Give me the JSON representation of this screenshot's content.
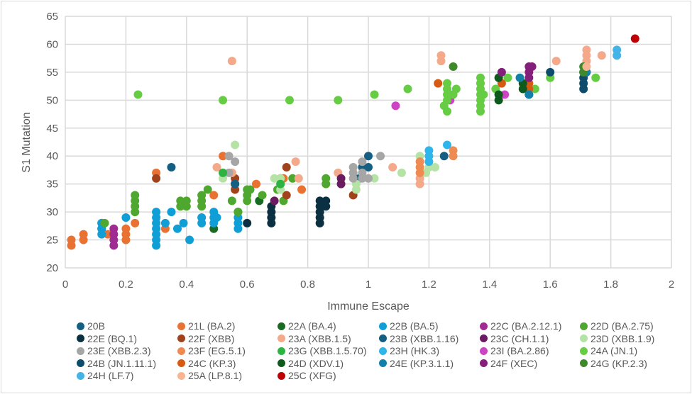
{
  "chart_data": {
    "type": "scatter",
    "title": "",
    "xlabel": "Immune Escape",
    "ylabel": "S1 Mutation",
    "xlim": [
      0,
      2
    ],
    "ylim": [
      20,
      65
    ],
    "xticks": [
      "0",
      "0.2",
      "0.4",
      "0.6",
      "0.8",
      "1",
      "1.2",
      "1.4",
      "1.6",
      "1.8",
      "2"
    ],
    "yticks": [
      "20",
      "25",
      "30",
      "35",
      "40",
      "45",
      "50",
      "55",
      "60",
      "65"
    ],
    "grid": true,
    "legend_position": "bottom",
    "series": [
      {
        "name": "20B",
        "color": "#156082",
        "points": [
          [
            0.12,
            28
          ],
          [
            0.12,
            27
          ],
          [
            0.35,
            38
          ],
          [
            0.56,
            35
          ],
          [
            0.98,
            38
          ]
        ]
      },
      {
        "name": "21L (BA.2)",
        "color": "#E97132",
        "points": [
          [
            0.02,
            24
          ],
          [
            0.02,
            25
          ],
          [
            0.06,
            25
          ],
          [
            0.06,
            26
          ],
          [
            0.14,
            26
          ],
          [
            0.2,
            25
          ],
          [
            0.2,
            26
          ],
          [
            0.2,
            27
          ],
          [
            0.23,
            28
          ],
          [
            0.33,
            27
          ],
          [
            0.3,
            37
          ],
          [
            0.49,
            33
          ],
          [
            0.52,
            40
          ],
          [
            0.63,
            35
          ],
          [
            0.72,
            36
          ],
          [
            0.78,
            34
          ]
        ]
      },
      {
        "name": "22A (BA.4)",
        "color": "#196B24",
        "points": [
          [
            0.49,
            27
          ],
          [
            0.64,
            32
          ]
        ]
      },
      {
        "name": "22B (BA.5)",
        "color": "#0F9ED5",
        "points": [
          [
            0.12,
            26
          ],
          [
            0.12,
            27
          ],
          [
            0.12,
            28
          ],
          [
            0.2,
            29
          ],
          [
            0.3,
            24
          ],
          [
            0.3,
            25
          ],
          [
            0.3,
            26
          ],
          [
            0.3,
            27
          ],
          [
            0.3,
            28
          ],
          [
            0.3,
            29
          ],
          [
            0.3,
            30
          ],
          [
            0.33,
            28
          ],
          [
            0.35,
            30
          ],
          [
            0.37,
            27
          ],
          [
            0.39,
            28
          ],
          [
            0.41,
            25
          ],
          [
            0.45,
            28
          ],
          [
            0.45,
            29
          ],
          [
            0.49,
            28
          ],
          [
            0.49,
            29
          ],
          [
            0.49,
            30
          ],
          [
            0.5,
            29
          ],
          [
            0.57,
            27
          ],
          [
            0.57,
            28
          ],
          [
            0.57,
            29
          ],
          [
            0.57,
            30
          ]
        ]
      },
      {
        "name": "22C (BA.2.12.1)",
        "color": "#A02B93",
        "points": [
          [
            0.16,
            24
          ],
          [
            0.16,
            25
          ],
          [
            0.16,
            26
          ],
          [
            0.16,
            27
          ]
        ]
      },
      {
        "name": "22D (BA.2.75)",
        "color": "#4EA72E",
        "points": [
          [
            0.13,
            28
          ],
          [
            0.23,
            30
          ],
          [
            0.23,
            31
          ],
          [
            0.23,
            32
          ],
          [
            0.23,
            33
          ],
          [
            0.38,
            31
          ],
          [
            0.38,
            32
          ],
          [
            0.4,
            31
          ],
          [
            0.4,
            32
          ],
          [
            0.45,
            31
          ],
          [
            0.45,
            32
          ],
          [
            0.45,
            33
          ],
          [
            0.47,
            34
          ],
          [
            0.55,
            32
          ],
          [
            0.57,
            30
          ],
          [
            0.6,
            32
          ],
          [
            0.6,
            33
          ],
          [
            0.6,
            34
          ],
          [
            0.61,
            34
          ],
          [
            0.65,
            33
          ],
          [
            0.7,
            34
          ],
          [
            0.71,
            36
          ],
          [
            0.72,
            32
          ],
          [
            0.75,
            36
          ],
          [
            0.86,
            35
          ],
          [
            0.86,
            36
          ]
        ]
      },
      {
        "name": "22E (BQ.1)",
        "color": "#0B3041",
        "points": [
          [
            0.6,
            28
          ],
          [
            0.68,
            28
          ],
          [
            0.68,
            29
          ],
          [
            0.68,
            30
          ],
          [
            0.68,
            31
          ],
          [
            0.84,
            28
          ],
          [
            0.84,
            29
          ],
          [
            0.84,
            30
          ],
          [
            0.84,
            31
          ],
          [
            0.84,
            32
          ],
          [
            0.86,
            31
          ],
          [
            0.86,
            32
          ]
        ]
      },
      {
        "name": "22F (XBB)",
        "color": "#A0421B",
        "points": [
          [
            0.3,
            36
          ],
          [
            0.56,
            34
          ],
          [
            0.56,
            36
          ],
          [
            0.73,
            33
          ],
          [
            0.73,
            38
          ],
          [
            0.95,
            33
          ]
        ]
      },
      {
        "name": "23A (XBB.1.5)",
        "color": "#F4A98A",
        "points": [
          [
            0.55,
            57
          ],
          [
            0.5,
            38
          ],
          [
            0.55,
            37
          ],
          [
            0.76,
            39
          ],
          [
            0.77,
            36
          ],
          [
            0.9,
            37
          ],
          [
            1.08,
            38
          ],
          [
            1.17,
            35
          ],
          [
            1.17,
            36
          ],
          [
            1.24,
            57
          ],
          [
            1.24,
            58
          ],
          [
            1.62,
            57
          ],
          [
            1.72,
            57
          ],
          [
            1.72,
            58
          ],
          [
            1.72,
            59
          ],
          [
            1.77,
            58
          ]
        ]
      },
      {
        "name": "23B (XBB.1.16)",
        "color": "#145F82",
        "points": [
          [
            0.56,
            35
          ],
          [
            0.97,
            36
          ],
          [
            1.0,
            40
          ],
          [
            1.0,
            38
          ],
          [
            1.25,
            40
          ],
          [
            1.53,
            51
          ]
        ]
      },
      {
        "name": "23C (CH.1.1)",
        "color": "#6B1B60",
        "points": [
          [
            0.69,
            32
          ],
          [
            0.91,
            35
          ],
          [
            0.91,
            36
          ]
        ]
      },
      {
        "name": "23D (XBB.1.9)",
        "color": "#B5E3A5",
        "points": [
          [
            0.52,
            36
          ],
          [
            0.52,
            37
          ],
          [
            0.56,
            42
          ],
          [
            0.69,
            36
          ],
          [
            0.71,
            34
          ],
          [
            0.71,
            35
          ],
          [
            0.71,
            36
          ],
          [
            0.96,
            34
          ],
          [
            0.96,
            35
          ],
          [
            1.02,
            36
          ],
          [
            1.11,
            37
          ],
          [
            1.17,
            40
          ],
          [
            1.19,
            37
          ],
          [
            1.2,
            38
          ],
          [
            1.22,
            38
          ]
        ]
      },
      {
        "name": "23E (XBB.2.3)",
        "color": "#A6A6A6",
        "points": [
          [
            0.54,
            40
          ],
          [
            0.56,
            39
          ],
          [
            0.54,
            37
          ],
          [
            0.95,
            36
          ],
          [
            0.95,
            37
          ],
          [
            0.95,
            38
          ],
          [
            0.98,
            36
          ],
          [
            0.98,
            37
          ],
          [
            0.98,
            39
          ],
          [
            1.0,
            36
          ],
          [
            1.04,
            40
          ]
        ]
      },
      {
        "name": "23F (EG.5.1)",
        "color": "#EE8A52",
        "points": [
          [
            1.17,
            37
          ],
          [
            1.17,
            38
          ],
          [
            1.17,
            39
          ],
          [
            1.28,
            40
          ],
          [
            1.28,
            41
          ]
        ]
      },
      {
        "name": "23G (XBB.1.5.70)",
        "color": "#2DB341",
        "points": [
          [
            0.52,
            37
          ],
          [
            0.71,
            35
          ]
        ]
      },
      {
        "name": "23H (HK.3)",
        "color": "#2EB5EC",
        "points": [
          [
            1.2,
            39
          ],
          [
            1.2,
            40
          ],
          [
            1.2,
            41
          ],
          [
            1.26,
            42
          ]
        ]
      },
      {
        "name": "23I (BA.2.86)",
        "color": "#CC44C2",
        "points": [
          [
            1.09,
            49
          ],
          [
            1.27,
            50
          ],
          [
            1.27,
            51
          ],
          [
            1.45,
            51
          ]
        ]
      },
      {
        "name": "24A (JN.1)",
        "color": "#66CC44",
        "points": [
          [
            0.24,
            51
          ],
          [
            0.52,
            50
          ],
          [
            0.74,
            50
          ],
          [
            0.9,
            50
          ],
          [
            1.02,
            51
          ],
          [
            1.13,
            52
          ],
          [
            1.25,
            49
          ],
          [
            1.26,
            48
          ],
          [
            1.26,
            50
          ],
          [
            1.26,
            51
          ],
          [
            1.26,
            52
          ],
          [
            1.26,
            53
          ],
          [
            1.28,
            51
          ],
          [
            1.29,
            52
          ],
          [
            1.37,
            48
          ],
          [
            1.37,
            49
          ],
          [
            1.37,
            50
          ],
          [
            1.37,
            51
          ],
          [
            1.37,
            52
          ],
          [
            1.37,
            53
          ],
          [
            1.37,
            54
          ],
          [
            1.38,
            51
          ],
          [
            1.42,
            52
          ],
          [
            1.46,
            54
          ],
          [
            1.55,
            52
          ],
          [
            1.6,
            54
          ],
          [
            1.75,
            54
          ]
        ]
      },
      {
        "name": "24B (JN.1.11.1)",
        "color": "#0F4C6B",
        "points": [
          [
            1.6,
            55
          ],
          [
            1.71,
            52
          ],
          [
            1.71,
            53
          ],
          [
            1.71,
            54
          ],
          [
            1.71,
            55
          ]
        ]
      },
      {
        "name": "24C (KP.3)",
        "color": "#D55A13",
        "points": [
          [
            1.23,
            53
          ],
          [
            1.44,
            53
          ],
          [
            1.53,
            52
          ],
          [
            1.53,
            53
          ]
        ]
      },
      {
        "name": "24D (XDV.1)",
        "color": "#0E5A1C",
        "points": [
          [
            1.43,
            50
          ],
          [
            1.43,
            51
          ],
          [
            1.43,
            54
          ],
          [
            1.51,
            52
          ],
          [
            1.51,
            53
          ]
        ]
      },
      {
        "name": "24E (KP.3.1.1)",
        "color": "#1380A8",
        "points": [
          [
            1.5,
            54
          ],
          [
            1.53,
            51
          ],
          [
            1.72,
            55
          ]
        ]
      },
      {
        "name": "24F (XEC)",
        "color": "#84207A",
        "points": [
          [
            1.44,
            55
          ],
          [
            1.53,
            54
          ],
          [
            1.53,
            55
          ],
          [
            1.53,
            56
          ],
          [
            1.54,
            56
          ]
        ]
      },
      {
        "name": "24G (KP.2.3)",
        "color": "#3E8A2A",
        "points": [
          [
            1.28,
            56
          ],
          [
            1.71,
            55
          ],
          [
            1.71,
            56
          ]
        ]
      },
      {
        "name": "24H (LF.7)",
        "color": "#44B3E6",
        "points": [
          [
            1.82,
            58
          ],
          [
            1.82,
            59
          ]
        ]
      },
      {
        "name": "25A (LP.8.1)",
        "color": "#F7B594",
        "points": [
          [
            1.72,
            56
          ]
        ]
      },
      {
        "name": "25C (XFG)",
        "color": "#C00000",
        "points": [
          [
            1.88,
            61
          ]
        ]
      }
    ]
  }
}
